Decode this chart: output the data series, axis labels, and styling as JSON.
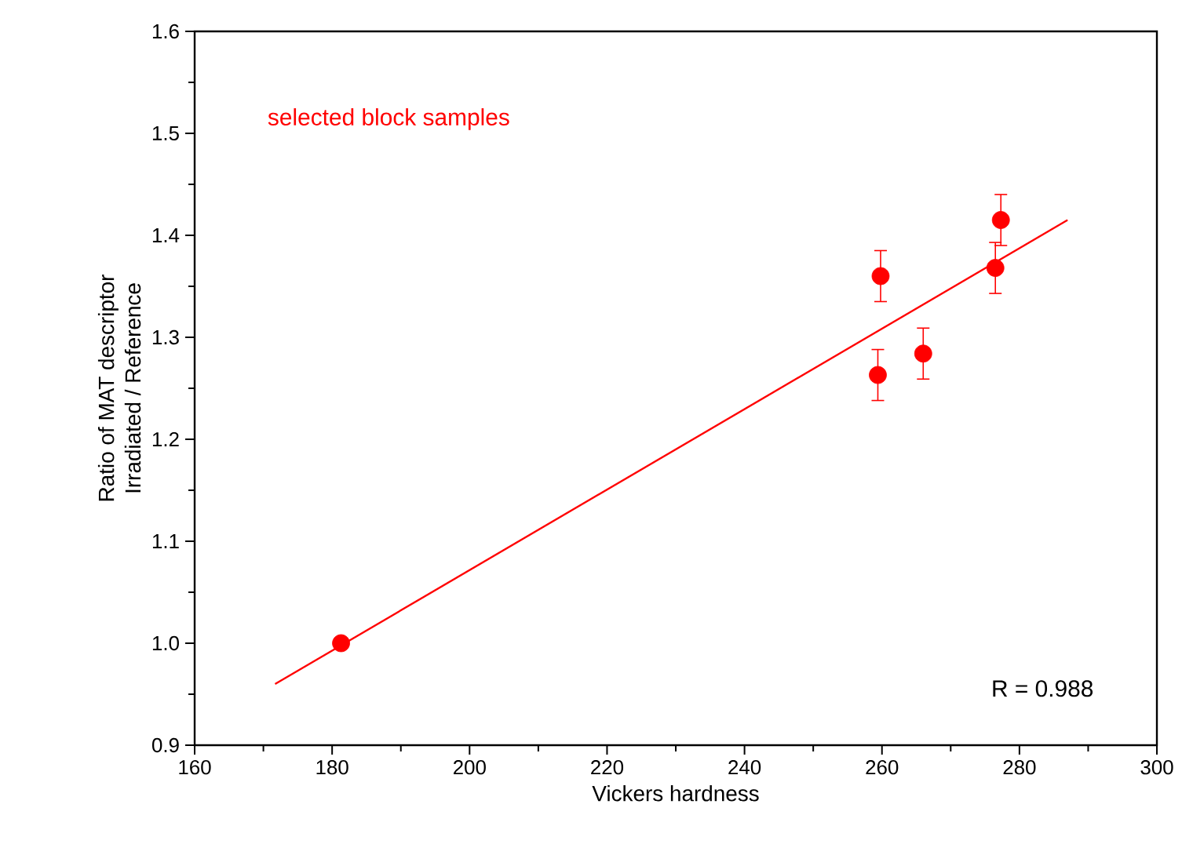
{
  "chart_data": {
    "type": "scatter",
    "xlabel": "Vickers hardness",
    "ylabel": "Ratio of MAT descriptor\nIrradiated / Reference",
    "xlim": [
      160,
      300
    ],
    "xticks": [
      160,
      180,
      200,
      220,
      240,
      260,
      280,
      300
    ],
    "ylim": [
      0.9,
      1.6
    ],
    "yticks": [
      {
        "value": 0.9,
        "label": "0.9"
      },
      {
        "value": 1.0,
        "label": "1.0"
      },
      {
        "value": 1.1,
        "label": "1.1"
      },
      {
        "value": 1.2,
        "label": "1.2"
      },
      {
        "value": 1.3,
        "label": "1.3"
      },
      {
        "value": 1.4,
        "label": "1.4"
      },
      {
        "value": 1.5,
        "label": "1.5"
      },
      {
        "value": 1.6,
        "label": "1.6"
      }
    ],
    "series": [
      {
        "marker": "circle",
        "color": "#ff0000",
        "x": [
          181.3,
          259.8,
          259.4,
          266.0,
          276.5,
          277.3
        ],
        "values": [
          1.0,
          1.36,
          1.263,
          1.284,
          1.368,
          1.415
        ],
        "errors": [
          null,
          0.025,
          0.025,
          0.025,
          0.025,
          0.025
        ]
      },
      {
        "type": "line",
        "marker": "none",
        "color": "#ff0000",
        "x": [
          171.7,
          287.0
        ],
        "values": [
          0.96,
          1.415
        ]
      }
    ],
    "grid": false,
    "annotations": [
      "selected block samples",
      "R = 0.988"
    ]
  }
}
